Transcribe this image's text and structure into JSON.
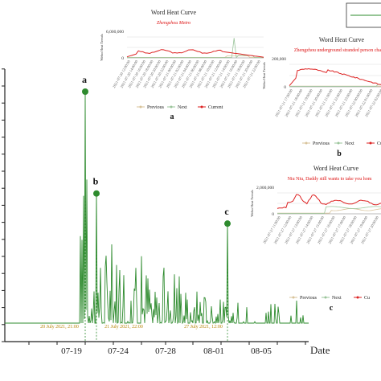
{
  "chart_data": [
    {
      "type": "line",
      "role": "main",
      "xlabel": "Date",
      "x_ticks": [
        "07-19",
        "07-24",
        "07-28",
        "08-01",
        "08-05"
      ],
      "series_color": "#2e8b2e",
      "peaks": [
        {
          "label": "a",
          "date": "20 July 2021, 21:00",
          "relative_value": 1.0
        },
        {
          "label": "b",
          "date": "21 July 2021, 22:00",
          "relative_value": 0.56
        },
        {
          "label": "c",
          "date": "27 July 2021, 12:00",
          "relative_value": 0.43
        }
      ]
    },
    {
      "type": "line",
      "role": "inset",
      "panel_label": "a",
      "title": "Word Heat Curve",
      "subtitle": "Zhengzhou Metro",
      "ylabel": "Webo Heat Trends",
      "y_ticks": [
        "6,000,000",
        "0"
      ],
      "x_tick_labels": [
        "2021-07-20 12:00:00",
        "2021-07-20 14:00:00",
        "2021-07-20 16:00:00",
        "2021-07-20 18:00:00",
        "2021-07-20 20:00:00",
        "2021-07-20 22:00:00",
        "2021-07-21 00:00:00",
        "2021-07-21 02:00:00",
        "2021-07-21 04:00:00",
        "2021-07-21 06:00:00",
        "2021-07-21 08:00:00",
        "2021-07-21 10:00:00",
        "2021-07-21 12:00:00",
        "2021-07-21 14:00:00",
        "2021-07-21 16:00:00",
        "2021-07-21 18:00:00",
        "2021-07-21 20:00:00",
        "2021-07-21 22:00:00"
      ],
      "legend": [
        "Previous",
        "Next",
        "Current"
      ]
    },
    {
      "type": "line",
      "role": "inset",
      "panel_label": "b",
      "title": "Word Heat Curve",
      "subtitle": "Zhengzhou underground stranded person cha",
      "ylabel": "Webo Heat Trends",
      "y_ticks": [
        "200,000",
        "0"
      ],
      "x_tick_labels": [
        "2021-07-21 17:00:00",
        "2021-07-21 18:00:00",
        "2021-07-21 19:00:00",
        "2021-07-21 20:00:00",
        "2021-07-21 21:00:00",
        "2021-07-21 22:00:00",
        "2021-07-21 23:00:00",
        "2021-07-22 00:00:00",
        "2021-07-22 01:00:00",
        "2021-07-22 02:00:00"
      ],
      "legend": [
        "Previous",
        "Next",
        "Cu"
      ]
    },
    {
      "type": "line",
      "role": "inset",
      "panel_label": "c",
      "title": "Word Heat Curve",
      "subtitle": "Niu Niu, Daddy still wants to take you hom",
      "ylabel": "Webo Heat Trends",
      "y_ticks": [
        "2,000,000",
        "0"
      ],
      "x_tick_labels": [
        "2021-07-27 11:00:00",
        "2021-07-27 12:00:00",
        "2021-07-27 13:00:00",
        "2021-07-27 14:00:00",
        "2021-07-27 15:00:00",
        "2021-07-27 16:00:00",
        "2021-07-27 17:00:00",
        "2021-07-27 18:00:00",
        "2021-07-27 19:00:00",
        "2021-07-27 20:00:00"
      ],
      "legend": [
        "Previous",
        "Next",
        "Cu"
      ]
    }
  ]
}
